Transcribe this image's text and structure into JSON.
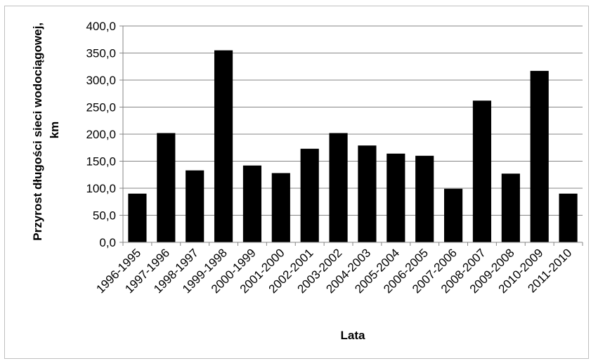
{
  "chart_data": {
    "type": "bar",
    "title": "",
    "xlabel": "Lata",
    "ylabel_line1": "Przyrost długości sieci wodociągowej,",
    "ylabel_line2": "km",
    "ylim": [
      0,
      400
    ],
    "y_ticks": [
      "0,0",
      "50,0",
      "100,0",
      "150,0",
      "200,0",
      "250,0",
      "300,0",
      "350,0",
      "400,0"
    ],
    "y_tick_values": [
      0,
      50,
      100,
      150,
      200,
      250,
      300,
      350,
      400
    ],
    "grid": true,
    "legend": "none",
    "bar_color": "#000000",
    "grid_color": "#868686",
    "categories": [
      "1996-1995",
      "1997-1996",
      "1998-1997",
      "1999-1998",
      "2000-1999",
      "2001-2000",
      "2002-2001",
      "2003-2002",
      "2004-2003",
      "2005-2004",
      "2006-2005",
      "2007-2006",
      "2008-2007",
      "2009-2008",
      "2010-2009",
      "2011-2010"
    ],
    "values": [
      90,
      202,
      133,
      355,
      142,
      128,
      173,
      202,
      179,
      164,
      160,
      99,
      262,
      127,
      317,
      90
    ]
  }
}
